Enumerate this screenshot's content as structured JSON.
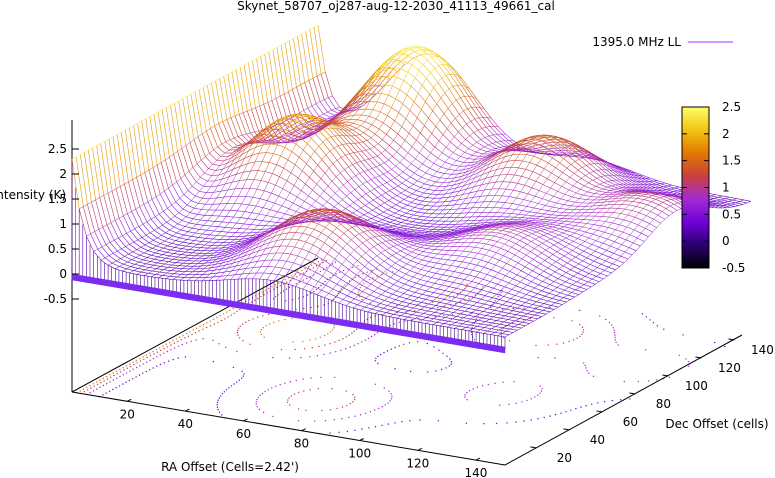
{
  "chart_data": {
    "type": "surface",
    "title": "Skynet_58707_oj287-aug-12-2030_41113_49661_cal",
    "legend": {
      "label": "1395.0 MHz LL",
      "color": "#9b30ff",
      "placement": "top-right"
    },
    "xlabel": "RA Offset (Cells=2.42')",
    "ylabel": "Dec Offset (cells)",
    "zlabel": "Intensity (K)",
    "x_ticks": [
      "20",
      "40",
      "60",
      "80",
      "100",
      "120",
      "140"
    ],
    "y_ticks": [
      "20",
      "40",
      "60",
      "80",
      "100",
      "120",
      "140"
    ],
    "z_ticks": [
      "2.5",
      "2",
      "1.5",
      "1",
      "0.5",
      "0",
      "-0.5"
    ],
    "xlim": [
      1,
      150
    ],
    "ylim": [
      1,
      150
    ],
    "zlim": [
      -0.5,
      2.5
    ],
    "colorbar": {
      "ticks": [
        "2.5",
        "2",
        "1.5",
        "1",
        "0.5",
        "0",
        "-0.5"
      ],
      "range": [
        -0.5,
        2.5
      ],
      "colors": [
        "#000000",
        "#2a006e",
        "#6f00d8",
        "#a42bd2",
        "#c8413e",
        "#e07a00",
        "#f3c314",
        "#ffff66"
      ]
    },
    "surface": {
      "baseline_K": 0.2,
      "edge_K": 2.3,
      "peaks": [
        {
          "x": 40,
          "y": 140,
          "z": 2.4
        },
        {
          "x": 95,
          "y": 120,
          "z": 1.5
        },
        {
          "x": 115,
          "y": 60,
          "z": 0.9
        },
        {
          "x": 70,
          "y": 30,
          "z": 1.4
        },
        {
          "x": 140,
          "y": 105,
          "z": 1.0
        },
        {
          "x": 30,
          "y": 85,
          "z": 1.9
        }
      ]
    },
    "grid": false
  }
}
